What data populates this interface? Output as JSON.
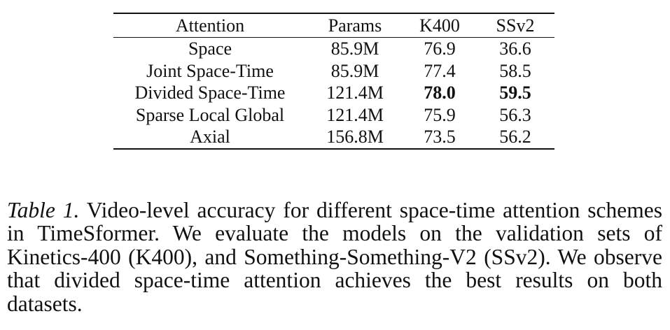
{
  "table": {
    "columns": [
      "Attention",
      "Params",
      "K400",
      "SSv2"
    ],
    "rows": [
      {
        "attention": "Space",
        "params": "85.9M",
        "k400": "76.9",
        "ssv2": "36.6"
      },
      {
        "attention": "Joint Space-Time",
        "params": "85.9M",
        "k400": "77.4",
        "ssv2": "58.5"
      },
      {
        "attention": "Divided Space-Time",
        "params": "121.4M",
        "k400": "78.0",
        "ssv2": "59.5"
      },
      {
        "attention": "Sparse Local Global",
        "params": "121.4M",
        "k400": "75.9",
        "ssv2": "56.3"
      },
      {
        "attention": "Axial",
        "params": "156.8M",
        "k400": "73.5",
        "ssv2": "56.2"
      }
    ]
  },
  "caption": {
    "label": "Table 1.",
    "text": "Video-level accuracy for different space-time attention schemes in TimeSformer. We evaluate the models on the valida­tion sets of Kinetics-400 (K400), and Something-Something-V2 (SSv2). We observe that divided space-time attention achieves the best results on both datasets."
  }
}
